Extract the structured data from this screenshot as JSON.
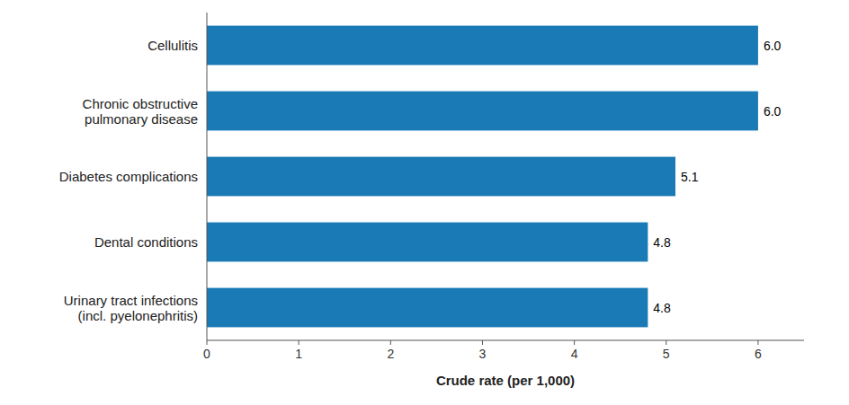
{
  "chart_data": {
    "type": "bar",
    "orientation": "horizontal",
    "categories": [
      "Urinary tract infections\n(incl. pyelonephritis)",
      "Dental conditions",
      "Diabetes complications",
      "Chronic obstructive\npulmonary disease",
      "Cellulitis"
    ],
    "values": [
      4.8,
      4.8,
      5.1,
      6.0,
      6.0
    ],
    "value_labels": [
      "4.8",
      "4.8",
      "5.1",
      "6.0",
      "6.0"
    ],
    "data_labels": true,
    "color": "#1a7ab5",
    "xlabel": "Crude rate (per 1,000)",
    "xlim": [
      0,
      6.5
    ],
    "xticks": [
      0,
      1,
      2,
      3,
      4,
      5,
      6
    ],
    "grid": false
  }
}
